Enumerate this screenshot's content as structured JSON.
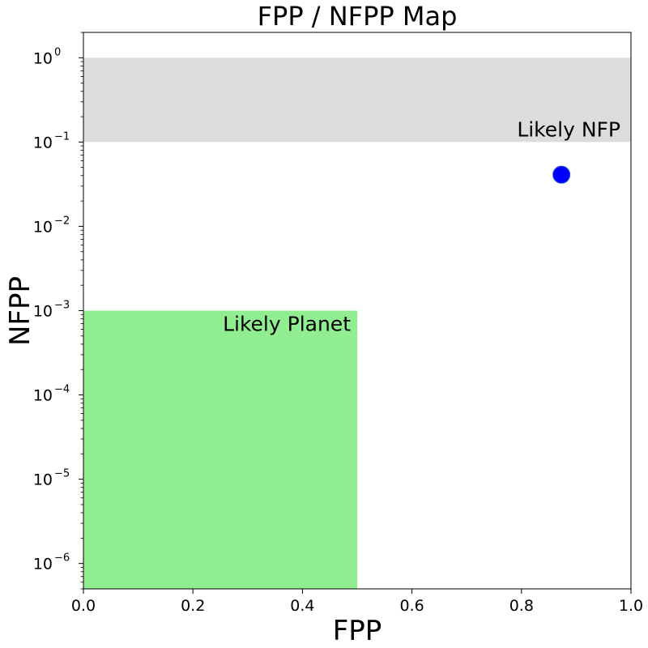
{
  "chart_data": {
    "type": "scatter",
    "title": "FPP / NFPP Map",
    "xlabel": "FPP",
    "ylabel": "NFPP",
    "xlim": [
      0.0,
      1.0
    ],
    "ylim": [
      5e-07,
      2.0
    ],
    "yscale": "log",
    "grid": false,
    "x_ticks": [
      {
        "value": 0.0,
        "label": "0.0"
      },
      {
        "value": 0.2,
        "label": "0.2"
      },
      {
        "value": 0.4,
        "label": "0.4"
      },
      {
        "value": 0.6,
        "label": "0.6"
      },
      {
        "value": 0.8,
        "label": "0.8"
      },
      {
        "value": 1.0,
        "label": "1.0"
      }
    ],
    "y_ticks": [
      {
        "value": 1e-06,
        "base": "10",
        "exp": "−6"
      },
      {
        "value": 1e-05,
        "base": "10",
        "exp": "−5"
      },
      {
        "value": 0.0001,
        "base": "10",
        "exp": "−4"
      },
      {
        "value": 0.001,
        "base": "10",
        "exp": "−3"
      },
      {
        "value": 0.01,
        "base": "10",
        "exp": "−2"
      },
      {
        "value": 0.1,
        "base": "10",
        "exp": "−1"
      },
      {
        "value": 1,
        "base": "10",
        "exp": "0"
      }
    ],
    "regions": [
      {
        "label": "Likely NFP",
        "x": [
          0.0,
          1.0
        ],
        "y": [
          0.1,
          1.0
        ],
        "color": "#dcdcdc"
      },
      {
        "label": "Likely Planet",
        "x": [
          0.0,
          0.5
        ],
        "y": [
          5e-07,
          0.001
        ],
        "color": "#90ee90"
      }
    ],
    "points": [
      {
        "x": 0.873,
        "y": 0.041,
        "color": "#0000ff"
      }
    ]
  }
}
